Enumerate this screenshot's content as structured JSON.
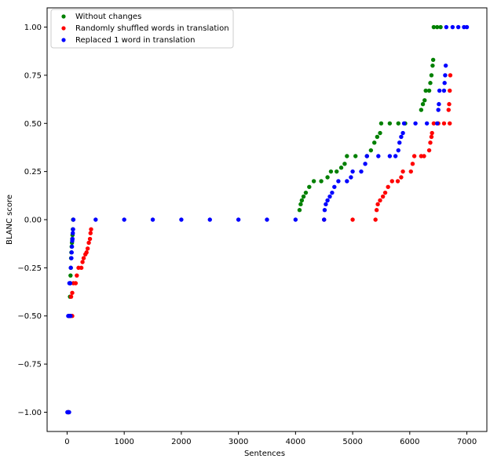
{
  "chart_data": {
    "type": "scatter",
    "title": "",
    "xlabel": "Sentences",
    "ylabel": "BLANC score",
    "xlim": [
      -350,
      7350
    ],
    "ylim": [
      -1.1,
      1.1
    ],
    "xticks": [
      0,
      1000,
      2000,
      3000,
      4000,
      5000,
      6000,
      7000
    ],
    "xtick_labels": [
      "0",
      "1000",
      "2000",
      "3000",
      "4000",
      "5000",
      "6000",
      "7000"
    ],
    "yticks": [
      -1.0,
      -0.75,
      -0.5,
      -0.25,
      0.0,
      0.25,
      0.5,
      0.75,
      1.0
    ],
    "ytick_labels": [
      "−1.00",
      "−0.75",
      "−0.50",
      "−0.25",
      "0.00",
      "0.25",
      "0.50",
      "0.75",
      "1.00"
    ],
    "grid": false,
    "legend_position": "top-left",
    "series": [
      {
        "name": "Without changes",
        "color": "#008000",
        "points": [
          [
            10,
            -1.0
          ],
          [
            20,
            -1.0
          ],
          [
            30,
            -1.0
          ],
          [
            25,
            -0.5
          ],
          [
            35,
            -0.5
          ],
          [
            45,
            -0.5
          ],
          [
            50,
            -0.4
          ],
          [
            55,
            -0.33
          ],
          [
            60,
            -0.29
          ],
          [
            65,
            -0.25
          ],
          [
            70,
            -0.2
          ],
          [
            75,
            -0.17
          ],
          [
            80,
            -0.14
          ],
          [
            85,
            -0.12
          ],
          [
            90,
            -0.1
          ],
          [
            95,
            -0.08
          ],
          [
            100,
            -0.05
          ],
          [
            105,
            0.0
          ],
          [
            4070,
            0.05
          ],
          [
            4090,
            0.08
          ],
          [
            4110,
            0.1
          ],
          [
            4140,
            0.12
          ],
          [
            4180,
            0.14
          ],
          [
            4240,
            0.17
          ],
          [
            4320,
            0.2
          ],
          [
            4450,
            0.2
          ],
          [
            4560,
            0.22
          ],
          [
            4620,
            0.25
          ],
          [
            4720,
            0.25
          ],
          [
            4800,
            0.27
          ],
          [
            4860,
            0.29
          ],
          [
            4900,
            0.33
          ],
          [
            5050,
            0.33
          ],
          [
            5250,
            0.33
          ],
          [
            5320,
            0.36
          ],
          [
            5380,
            0.4
          ],
          [
            5430,
            0.43
          ],
          [
            5480,
            0.45
          ],
          [
            5500,
            0.5
          ],
          [
            5650,
            0.5
          ],
          [
            5800,
            0.5
          ],
          [
            5920,
            0.5
          ],
          [
            6200,
            0.57
          ],
          [
            6230,
            0.6
          ],
          [
            6260,
            0.62
          ],
          [
            6280,
            0.67
          ],
          [
            6340,
            0.67
          ],
          [
            6360,
            0.71
          ],
          [
            6380,
            0.75
          ],
          [
            6400,
            0.8
          ],
          [
            6410,
            0.83
          ],
          [
            6420,
            1.0
          ],
          [
            6480,
            1.0
          ],
          [
            6540,
            1.0
          ]
        ]
      },
      {
        "name": "Randomly shuffled words in translation",
        "color": "#ff0000",
        "points": [
          [
            15,
            -1.0
          ],
          [
            25,
            -1.0
          ],
          [
            30,
            -0.5
          ],
          [
            60,
            -0.5
          ],
          [
            90,
            -0.5
          ],
          [
            70,
            -0.4
          ],
          [
            90,
            -0.38
          ],
          [
            110,
            -0.33
          ],
          [
            150,
            -0.33
          ],
          [
            170,
            -0.29
          ],
          [
            200,
            -0.25
          ],
          [
            250,
            -0.25
          ],
          [
            270,
            -0.22
          ],
          [
            290,
            -0.2
          ],
          [
            320,
            -0.18
          ],
          [
            340,
            -0.17
          ],
          [
            360,
            -0.15
          ],
          [
            380,
            -0.12
          ],
          [
            400,
            -0.1
          ],
          [
            410,
            -0.07
          ],
          [
            420,
            -0.05
          ],
          [
            4500,
            0.0
          ],
          [
            5000,
            0.0
          ],
          [
            5400,
            0.0
          ],
          [
            5420,
            0.05
          ],
          [
            5440,
            0.08
          ],
          [
            5480,
            0.1
          ],
          [
            5530,
            0.12
          ],
          [
            5570,
            0.14
          ],
          [
            5620,
            0.17
          ],
          [
            5690,
            0.2
          ],
          [
            5790,
            0.2
          ],
          [
            5850,
            0.22
          ],
          [
            5880,
            0.25
          ],
          [
            6020,
            0.25
          ],
          [
            6050,
            0.29
          ],
          [
            6080,
            0.33
          ],
          [
            6200,
            0.33
          ],
          [
            6250,
            0.33
          ],
          [
            6340,
            0.36
          ],
          [
            6360,
            0.4
          ],
          [
            6380,
            0.43
          ],
          [
            6390,
            0.45
          ],
          [
            6420,
            0.5
          ],
          [
            6500,
            0.5
          ],
          [
            6600,
            0.5
          ],
          [
            6700,
            0.5
          ],
          [
            6680,
            0.57
          ],
          [
            6690,
            0.6
          ],
          [
            6700,
            0.67
          ],
          [
            6710,
            0.75
          ]
        ]
      },
      {
        "name": "Replaced 1 word in translation",
        "color": "#0000ff",
        "points": [
          [
            5,
            -1.0
          ],
          [
            20,
            -1.0
          ],
          [
            35,
            -1.0
          ],
          [
            20,
            -0.5
          ],
          [
            40,
            -0.5
          ],
          [
            60,
            -0.5
          ],
          [
            40,
            -0.33
          ],
          [
            55,
            -0.33
          ],
          [
            65,
            -0.25
          ],
          [
            75,
            -0.2
          ],
          [
            80,
            -0.17
          ],
          [
            85,
            -0.14
          ],
          [
            90,
            -0.11
          ],
          [
            95,
            -0.1
          ],
          [
            100,
            -0.07
          ],
          [
            105,
            -0.05
          ],
          [
            110,
            0.0
          ],
          [
            500,
            0.0
          ],
          [
            1000,
            0.0
          ],
          [
            1500,
            0.0
          ],
          [
            2000,
            0.0
          ],
          [
            2500,
            0.0
          ],
          [
            3000,
            0.0
          ],
          [
            3500,
            0.0
          ],
          [
            4000,
            0.0
          ],
          [
            4500,
            0.0
          ],
          [
            4510,
            0.05
          ],
          [
            4530,
            0.08
          ],
          [
            4560,
            0.1
          ],
          [
            4600,
            0.12
          ],
          [
            4640,
            0.14
          ],
          [
            4680,
            0.17
          ],
          [
            4750,
            0.2
          ],
          [
            4900,
            0.2
          ],
          [
            4970,
            0.22
          ],
          [
            5000,
            0.25
          ],
          [
            5150,
            0.25
          ],
          [
            5220,
            0.29
          ],
          [
            5250,
            0.33
          ],
          [
            5450,
            0.33
          ],
          [
            5650,
            0.33
          ],
          [
            5750,
            0.33
          ],
          [
            5800,
            0.36
          ],
          [
            5820,
            0.4
          ],
          [
            5850,
            0.43
          ],
          [
            5880,
            0.45
          ],
          [
            5900,
            0.5
          ],
          [
            6100,
            0.5
          ],
          [
            6300,
            0.5
          ],
          [
            6480,
            0.5
          ],
          [
            6500,
            0.57
          ],
          [
            6510,
            0.6
          ],
          [
            6520,
            0.67
          ],
          [
            6600,
            0.67
          ],
          [
            6610,
            0.71
          ],
          [
            6620,
            0.75
          ],
          [
            6630,
            0.8
          ],
          [
            6640,
            1.0
          ],
          [
            6750,
            1.0
          ],
          [
            6850,
            1.0
          ],
          [
            6950,
            1.0
          ],
          [
            7000,
            1.0
          ]
        ]
      }
    ]
  }
}
